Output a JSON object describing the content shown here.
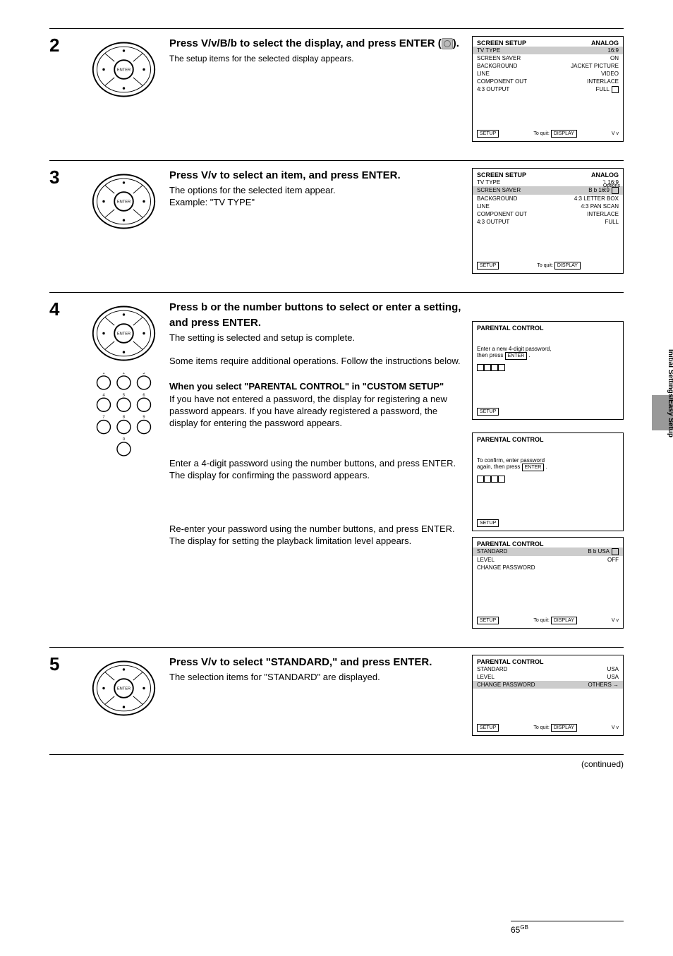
{
  "colors": {
    "rule": "#000000",
    "hilite": "#cccccc",
    "tab": "#888888",
    "enter_icon_bg": "#bbbbbb"
  },
  "arrows": {
    "ud": "V/v",
    "udlr": "V/v/B/b",
    "r": "b",
    "lr": "B b",
    "ud_small": "V v"
  },
  "tab_label": "Initial Settings/Easy Setup",
  "step2": {
    "num": "2",
    "lead_a": "Press ",
    "lead_b": " to select the display, and press ENTER (",
    "lead_c": ").",
    "body": "The setup items for the selected display appears.",
    "screen": {
      "title_l": "SCREEN SETUP",
      "title_r": "ANALOG",
      "rows": [
        {
          "l": "TV TYPE",
          "r": "16:9",
          "hilite": true
        },
        {
          "l": "SCREEN SAVER",
          "r": "ON"
        },
        {
          "l": "BACKGROUND",
          "r": "JACKET PICTURE"
        },
        {
          "l": "LINE",
          "r": "VIDEO"
        },
        {
          "l": "COMPONENT OUT",
          "r": "INTERLACE"
        },
        {
          "l": "4:3 OUTPUT",
          "r": "FULL",
          "icon": "lock"
        }
      ],
      "bl": "SETUP",
      "bm_text": "To quit: ",
      "bm_btn": "DISPLAY",
      "br_arrows": true
    }
  },
  "step3": {
    "num": "3",
    "lead_a": "Press ",
    "lead_b": " to select an item, and press ENTER.",
    "body": "The options for the selected item appear.\nExample: \"TV TYPE\"",
    "screen": {
      "title_l": "SCREEN SETUP",
      "title_r": "ANALOG",
      "rows": [
        {
          "l": "TV TYPE",
          "r": "16:9"
        },
        {
          "l": "SCREEN SAVER",
          "r": "16:9",
          "hilite": true,
          "arrows": true,
          "icon": "lock"
        },
        {
          "l": "BACKGROUND",
          "r": "4:3 LETTER BOX"
        },
        {
          "l": "LINE",
          "r": "4:3 PAN SCAN"
        },
        {
          "l": "COMPONENT OUT",
          "r": "INTERLACE"
        },
        {
          "l": "4:3 OUTPUT",
          "r": "FULL"
        }
      ],
      "bl": "SETUP",
      "bm_text": "To quit: ",
      "bm_btn": "DISPLAY",
      "opts_label": "Options"
    }
  },
  "step4": {
    "num": "4",
    "lead_a": "Press ",
    "lead_b": " or the number buttons to select or enter a setting, and press ENTER.",
    "body": "The setting is selected and setup is complete.\n\nSome items require additional operations. Follow the instructions below.",
    "sub1": {
      "heading": "When you select \"PARENTAL CONTROL\" in \"CUSTOM SETUP\"",
      "text": "If you have not entered a password, the display for registering a new password appears. If you have already registered a password, the display for entering the password appears.",
      "screen1": {
        "title_l": "PARENTAL CONTROL",
        "line1": "Enter a new 4-digit password,",
        "line2": "then press   ENTER  .",
        "boxes": 4,
        "bl": "SETUP"
      }
    },
    "sub2": {
      "text": "Enter a 4-digit password using the number buttons, and press ENTER. The display for confirming the password appears.",
      "screen": {
        "title_l": "PARENTAL CONTROL",
        "line1": "To confirm, enter password",
        "line2": "again, then press   ENTER  .",
        "boxes": 4,
        "bl": "SETUP"
      }
    },
    "sub3": {
      "text": "Re-enter your password using the number buttons, and press ENTER.\nThe display for setting the playback limitation level appears.",
      "screen": {
        "title_l": "PARENTAL CONTROL",
        "rows": [
          {
            "l": "STANDARD",
            "r": "USA",
            "hilite": true,
            "arrows": true,
            "icon": "lock"
          },
          {
            "l": "LEVEL",
            "r": "OFF"
          },
          {
            "l": "CHANGE PASSWORD",
            "r": ""
          }
        ],
        "bl": "SETUP",
        "bm_text": "To quit: ",
        "bm_btn": "DISPLAY",
        "br_arrows": true
      }
    }
  },
  "step5": {
    "num": "5",
    "lead_a": "Press ",
    "lead_b": " to select \"STANDARD,\" and press ENTER.",
    "body": "The selection items for \"STANDARD\" are displayed.",
    "screen": {
      "title_l": "PARENTAL CONTROL",
      "rows": [
        {
          "l": "STANDARD",
          "r": "USA"
        },
        {
          "l": "LEVEL",
          "r": "USA"
        },
        {
          "l": "CHANGE PASSWORD",
          "r": "OTHERS →",
          "hilite": true
        }
      ],
      "bl": "SETUP",
      "bm_text": "To quit: ",
      "bm_btn": "DISPLAY",
      "br_arrows": true
    }
  },
  "footer": {
    "cont": "(continued)",
    "page": "65",
    "sup": "GB"
  }
}
